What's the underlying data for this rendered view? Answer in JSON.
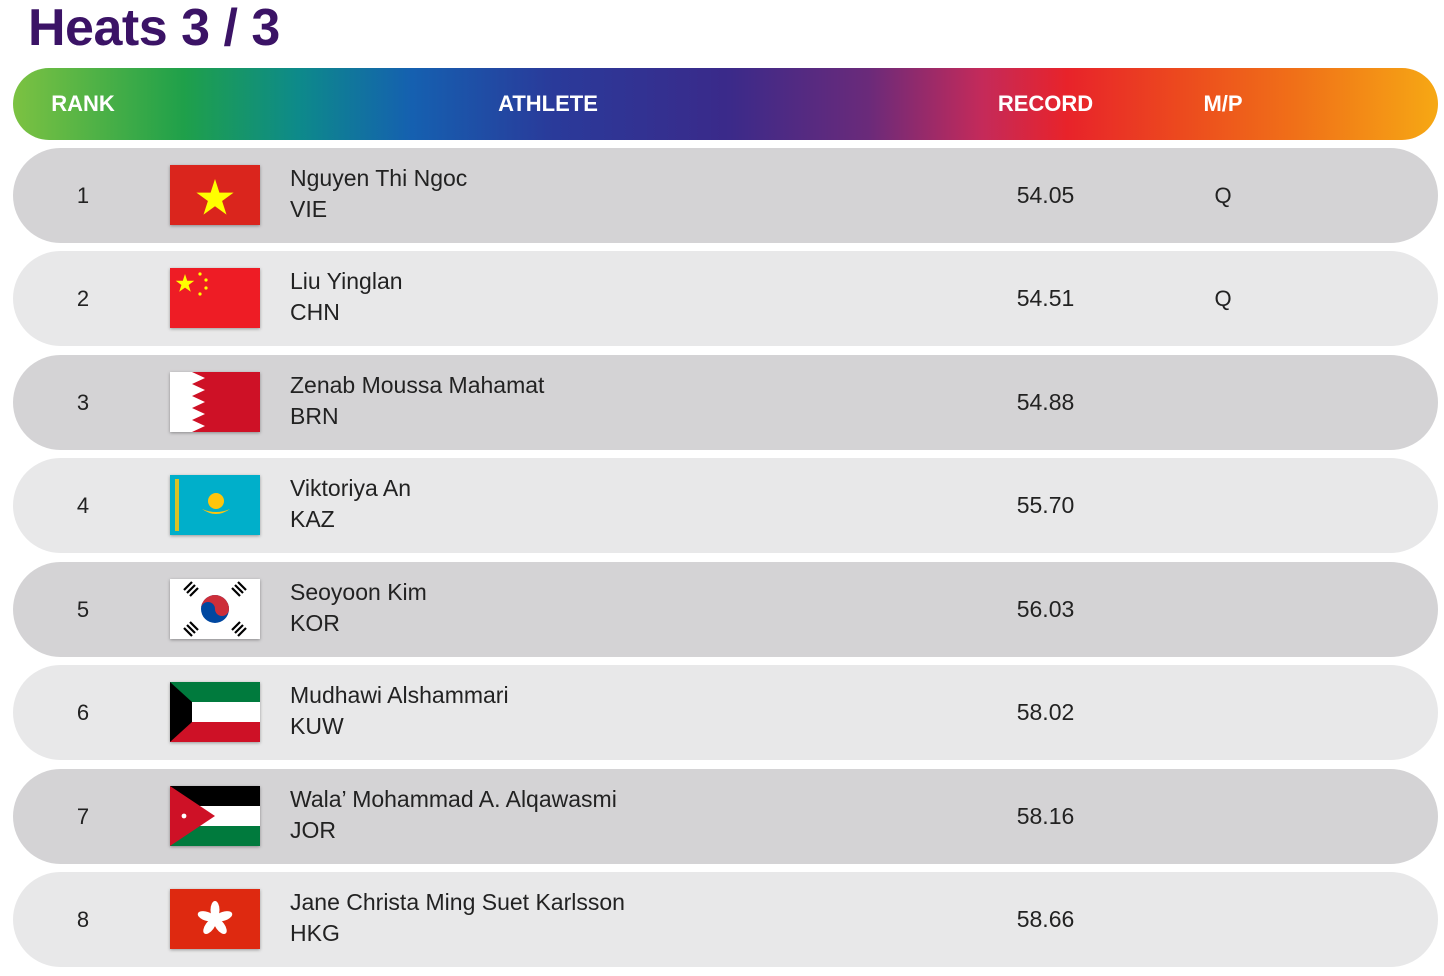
{
  "title": "Heats 3 / 3",
  "header": {
    "rank": "RANK",
    "athlete": "ATHLETE",
    "record": "RECORD",
    "mp": "M/P"
  },
  "rows": [
    {
      "rank": "1",
      "name": "Nguyen Thi Ngoc",
      "code": "VIE",
      "record": "54.05",
      "mp": "Q",
      "flag": "vietnam-flag-icon"
    },
    {
      "rank": "2",
      "name": "Liu Yinglan",
      "code": "CHN",
      "record": "54.51",
      "mp": "Q",
      "flag": "china-flag-icon"
    },
    {
      "rank": "3",
      "name": "Zenab Moussa Mahamat",
      "code": "BRN",
      "record": "54.88",
      "mp": "",
      "flag": "bahrain-flag-icon"
    },
    {
      "rank": "4",
      "name": "Viktoriya An",
      "code": "KAZ",
      "record": "55.70",
      "mp": "",
      "flag": "kazakhstan-flag-icon"
    },
    {
      "rank": "5",
      "name": "Seoyoon Kim",
      "code": "KOR",
      "record": "56.03",
      "mp": "",
      "flag": "korea-flag-icon"
    },
    {
      "rank": "6",
      "name": "Mudhawi Alshammari",
      "code": "KUW",
      "record": "58.02",
      "mp": "",
      "flag": "kuwait-flag-icon"
    },
    {
      "rank": "7",
      "name": "Wala’ Mohammad A. Alqawasmi",
      "code": "JOR",
      "record": "58.16",
      "mp": "",
      "flag": "jordan-flag-icon"
    },
    {
      "rank": "8",
      "name": "Jane Christa Ming Suet Karlsson",
      "code": "HKG",
      "record": "58.66",
      "mp": "",
      "flag": "hong-kong-flag-icon"
    }
  ],
  "colors": {
    "title": "#3b1366",
    "row_dark": "#d4d3d5",
    "row_light": "#e8e8e9"
  }
}
